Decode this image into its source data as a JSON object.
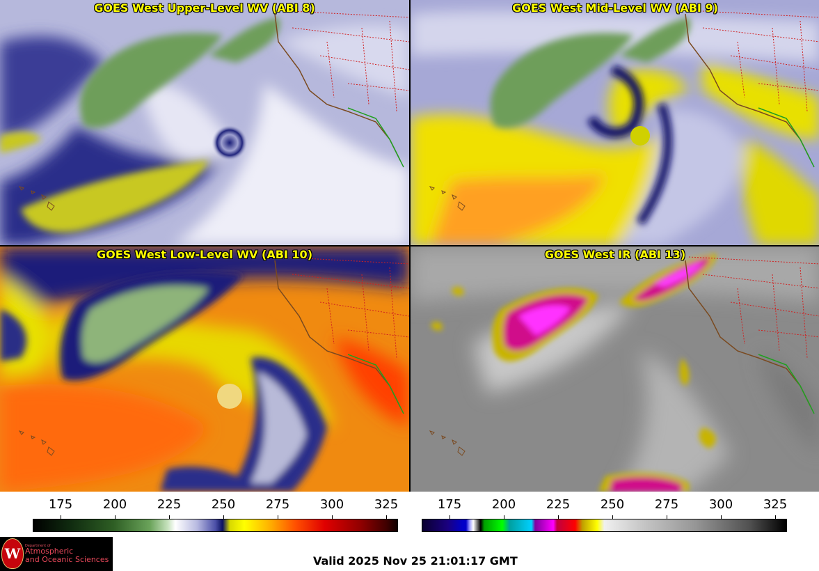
{
  "panels": [
    {
      "title": "GOES West Upper-Level WV (ABI 8)",
      "palette": "wv"
    },
    {
      "title": "GOES West Mid-Level WV (ABI 9)",
      "palette": "wv"
    },
    {
      "title": "GOES West Low-Level WV (ABI 10)",
      "palette": "wv"
    },
    {
      "title": "GOES West IR (ABI 13)",
      "palette": "ir"
    }
  ],
  "colorbars": [
    {
      "ticks": [
        "175",
        "200",
        "225",
        "250",
        "275",
        "300",
        "325"
      ]
    },
    {
      "ticks": [
        "175",
        "200",
        "225",
        "250",
        "275",
        "300",
        "325"
      ]
    }
  ],
  "logo": {
    "dept": "Department of",
    "name_line1": "Atmospheric",
    "name_line2": "and Oceanic Sciences",
    "seal_letter": "W"
  },
  "footer": {
    "valid_time": "Valid 2025 Nov 25 21:01:17 GMT"
  }
}
